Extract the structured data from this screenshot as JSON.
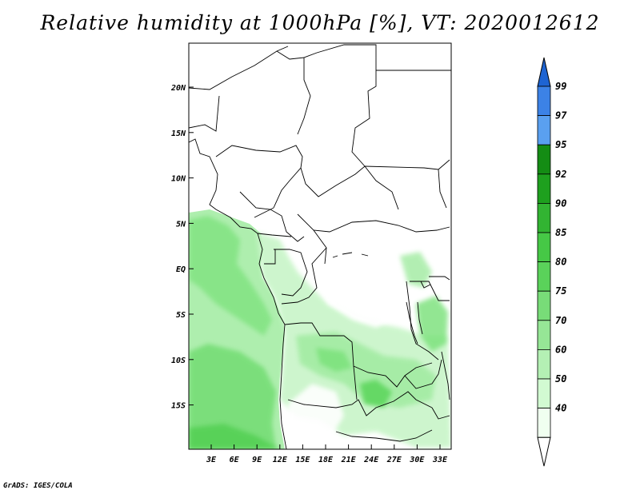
{
  "title": "Relative humidity at 1000hPa [%], VT: 2020012612",
  "credit": "GrADS: IGES/COLA",
  "map": {
    "lat_labels": [
      "20N",
      "15N",
      "10N",
      "5N",
      "EQ",
      "5S",
      "10S",
      "15S"
    ],
    "lon_labels": [
      "3E",
      "6E",
      "9E",
      "12E",
      "15E",
      "18E",
      "21E",
      "24E",
      "27E",
      "30E",
      "33E"
    ],
    "field_colors": [
      "#f0fff0",
      "#c8f5c8",
      "#a0eba0",
      "#78e178",
      "#5ad55a",
      "#3cc83c"
    ]
  },
  "colorbar": {
    "labels": [
      "99",
      "97",
      "95",
      "92",
      "90",
      "85",
      "80",
      "75",
      "70",
      "60",
      "50",
      "40"
    ],
    "colors": [
      "#1e64d2",
      "#3c82e6",
      "#5aa0f0",
      "#148c14",
      "#1ea01e",
      "#32b432",
      "#46c846",
      "#5ad25a",
      "#78dc78",
      "#96e696",
      "#b4f0b4",
      "#d2fad2",
      "#f0fff0",
      "#ffffff"
    ]
  }
}
